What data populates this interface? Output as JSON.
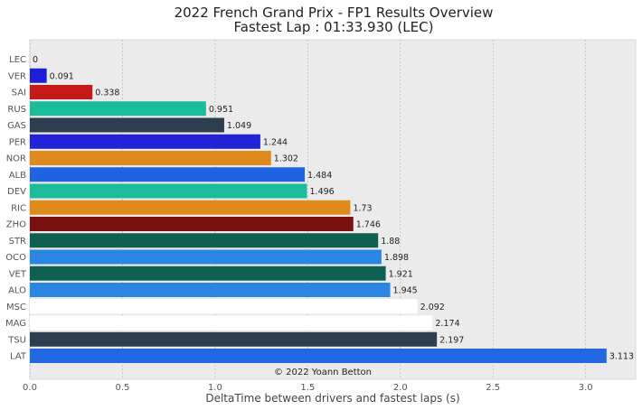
{
  "chart_data": {
    "type": "bar",
    "orientation": "horizontal",
    "title": "2022 French Grand Prix - FP1 Results Overview",
    "subtitle": "Fastest Lap : 01:33.930 (LEC)",
    "xlabel": "DeltaTime between drivers and fastest laps (s)",
    "ylabel": "",
    "xlim": [
      0,
      3.27
    ],
    "xticks": [
      0.0,
      0.5,
      1.0,
      1.5,
      2.0,
      2.5,
      3.0
    ],
    "xtick_labels": [
      "0.0",
      "0.5",
      "1.0",
      "1.5",
      "2.0",
      "2.5",
      "3.0"
    ],
    "grid": true,
    "annotation": "© 2022 Yoann Betton",
    "categories": [
      "LEC",
      "VER",
      "SAI",
      "RUS",
      "GAS",
      "PER",
      "NOR",
      "ALB",
      "DEV",
      "RIC",
      "ZHO",
      "STR",
      "OCO",
      "VET",
      "ALO",
      "MSC",
      "MAG",
      "TSU",
      "LAT"
    ],
    "values": [
      0,
      0.091,
      0.338,
      0.951,
      1.049,
      1.244,
      1.302,
      1.484,
      1.496,
      1.73,
      1.746,
      1.88,
      1.898,
      1.921,
      1.945,
      2.092,
      2.174,
      2.197,
      3.113
    ],
    "value_labels": [
      "0",
      "0.091",
      "0.338",
      "0.951",
      "1.049",
      "1.244",
      "1.302",
      "1.484",
      "1.496",
      "1.73",
      "1.746",
      "1.88",
      "1.898",
      "1.921",
      "1.945",
      "2.092",
      "2.174",
      "2.197",
      "3.113"
    ],
    "colors": [
      "#dc0000",
      "#1e1ed8",
      "#c41a1a",
      "#1abc9c",
      "#2c3e50",
      "#2222d6",
      "#e08a1e",
      "#1f63e0",
      "#1abc9c",
      "#e08a1e",
      "#7a1010",
      "#0e6052",
      "#2a86e0",
      "#0e6052",
      "#2a86e0",
      "#ffffff",
      "#ffffff",
      "#2c3e50",
      "#2368e3"
    ]
  }
}
